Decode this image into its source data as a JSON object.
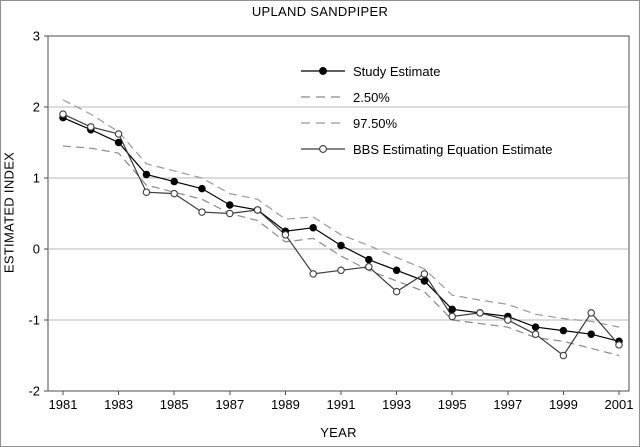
{
  "chart_data": {
    "type": "line",
    "title": "UPLAND SANDPIPER",
    "xlabel": "YEAR",
    "ylabel": "ESTIMATED INDEX",
    "ylim": [
      -2,
      3
    ],
    "y_ticks": [
      3,
      2,
      1,
      0,
      -1,
      -2
    ],
    "x_tick_labels": [
      1981,
      1983,
      1985,
      1987,
      1989,
      1991,
      1993,
      1995,
      1997,
      1999,
      2001
    ],
    "grid": "horizontal",
    "legend_position": "inside-top-center",
    "x": [
      1981,
      1982,
      1983,
      1984,
      1985,
      1986,
      1987,
      1988,
      1989,
      1990,
      1991,
      1992,
      1993,
      1994,
      1995,
      1996,
      1997,
      1998,
      1999,
      2000,
      2001
    ],
    "series": [
      {
        "name": "Study Estimate",
        "line": "solid",
        "marker": "filled-circle",
        "color": "#000000",
        "values": [
          1.85,
          1.68,
          1.5,
          1.05,
          0.95,
          0.85,
          0.62,
          0.55,
          0.25,
          0.3,
          0.05,
          -0.15,
          -0.3,
          -0.45,
          -0.85,
          -0.9,
          -0.95,
          -1.1,
          -1.15,
          -1.2,
          -1.3
        ]
      },
      {
        "name": "2.50%",
        "line": "dashed",
        "marker": "none",
        "color": "#8a8a8a",
        "values": [
          1.45,
          1.42,
          1.35,
          0.9,
          0.8,
          0.7,
          0.5,
          0.4,
          0.1,
          0.15,
          -0.1,
          -0.3,
          -0.45,
          -0.6,
          -1.0,
          -1.05,
          -1.1,
          -1.25,
          -1.3,
          -1.4,
          -1.5
        ]
      },
      {
        "name": "97.50%",
        "line": "dashed",
        "marker": "none",
        "color": "#9a9a9a",
        "values": [
          2.1,
          1.9,
          1.65,
          1.2,
          1.1,
          1.0,
          0.78,
          0.7,
          0.42,
          0.45,
          0.2,
          0.05,
          -0.12,
          -0.28,
          -0.65,
          -0.72,
          -0.78,
          -0.92,
          -0.98,
          -1.02,
          -1.1
        ]
      },
      {
        "name": "BBS Estimating Equation Estimate",
        "line": "solid",
        "marker": "open-circle",
        "color": "#3d3d3d",
        "values": [
          1.9,
          1.72,
          1.62,
          0.8,
          0.78,
          0.52,
          0.5,
          0.55,
          0.2,
          -0.35,
          -0.3,
          -0.25,
          -0.6,
          -0.35,
          -0.95,
          -0.9,
          -1.0,
          -1.2,
          -1.5,
          -0.9,
          -1.35
        ]
      }
    ]
  }
}
